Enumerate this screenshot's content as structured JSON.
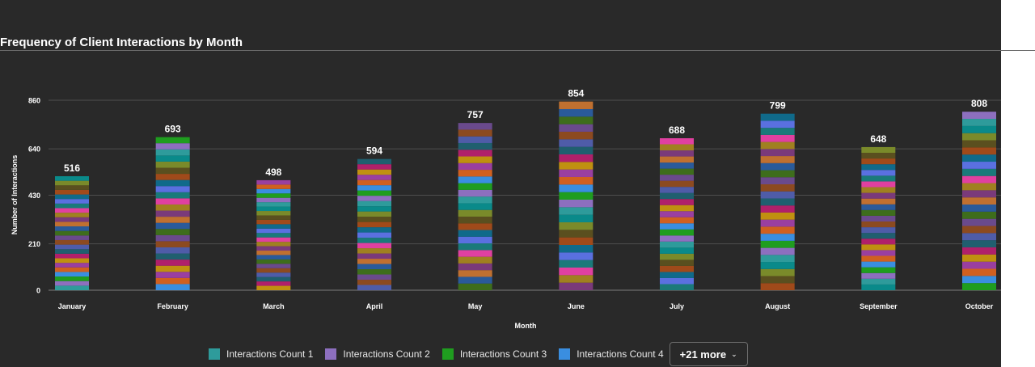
{
  "chart_data": {
    "type": "bar",
    "stacked": true,
    "title": "Frequency of Client Interactions by Month",
    "xlabel": "Month",
    "ylabel": "Number of Interactions",
    "ylim": [
      0,
      860
    ],
    "yticks": [
      0,
      210,
      430,
      640,
      860
    ],
    "grid": true,
    "legend_position": "bottom",
    "categories": [
      "January",
      "February",
      "March",
      "April",
      "May",
      "June",
      "July",
      "August",
      "September",
      "October"
    ],
    "totals": [
      516,
      693,
      498,
      594,
      757,
      854,
      688,
      799,
      648,
      808
    ],
    "series_colors": [
      "#2e9b9b",
      "#8d6fbf",
      "#1f9d1f",
      "#3a8ee0",
      "#d06020",
      "#9a3fa0",
      "#c09010",
      "#b0206a",
      "#205f6f",
      "#4f5ca8",
      "#8c4a20",
      "#6a4a8c",
      "#3e6d1c",
      "#2a5a9a",
      "#c07030",
      "#7a3a7a",
      "#a08020",
      "#e040a0",
      "#1a7a7a",
      "#5a70e0",
      "#106a8a",
      "#a04a1a",
      "#5a4f1f",
      "#7a8a2a",
      "#0a8a8a"
    ],
    "legend": {
      "series": [
        {
          "name": "Interactions Count 1",
          "color": "#2e9b9b"
        },
        {
          "name": "Interactions Count 2",
          "color": "#8d6fbf"
        },
        {
          "name": "Interactions Count 3",
          "color": "#1f9d1f"
        },
        {
          "name": "Interactions Count 4",
          "color": "#3a8ee0"
        }
      ],
      "more_label": "+21 more"
    }
  }
}
